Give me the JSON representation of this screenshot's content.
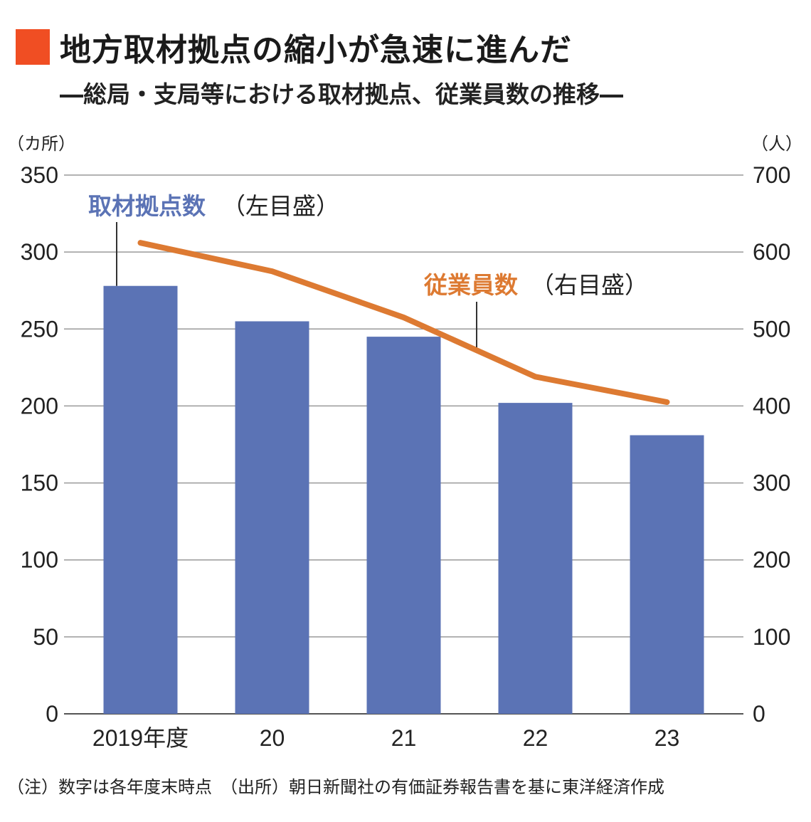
{
  "header": {
    "title": "地方取材拠点の縮小が急速に進んだ",
    "subtitle": "―総局・支局等における取材拠点、従業員数の推移―"
  },
  "colors": {
    "accent": "#f04e23",
    "bar": "#5b73b5",
    "line": "#dd7a32",
    "grid": "#9a9a9a"
  },
  "chart_data": {
    "type": "bar",
    "categories": [
      "2019年度",
      "20",
      "21",
      "22",
      "23"
    ],
    "series": [
      {
        "name": "取材拠点数",
        "axis": "left",
        "type": "bar",
        "values": [
          278,
          255,
          245,
          202,
          181
        ]
      },
      {
        "name": "従業員数",
        "axis": "right",
        "type": "line",
        "values": [
          612,
          575,
          515,
          438,
          405
        ]
      }
    ],
    "left_axis": {
      "unit": "（カ所）",
      "ticks": [
        "0",
        "50",
        "100",
        "150",
        "200",
        "250",
        "300",
        "350"
      ],
      "ylim": [
        0,
        350
      ]
    },
    "right_axis": {
      "unit": "（人）",
      "ticks": [
        "0",
        "100",
        "200",
        "300",
        "400",
        "500",
        "600",
        "700"
      ],
      "ylim": [
        0,
        700
      ]
    },
    "annotations": {
      "bars_label": "取材拠点数",
      "bars_scale": "（左目盛）",
      "line_label": "従業員数",
      "line_scale": "（右目盛）"
    },
    "grid": true
  },
  "footer": {
    "note": "（注）数字は各年度末時点　（出所）朝日新聞社の有価証券報告書を基に東洋経済作成"
  }
}
